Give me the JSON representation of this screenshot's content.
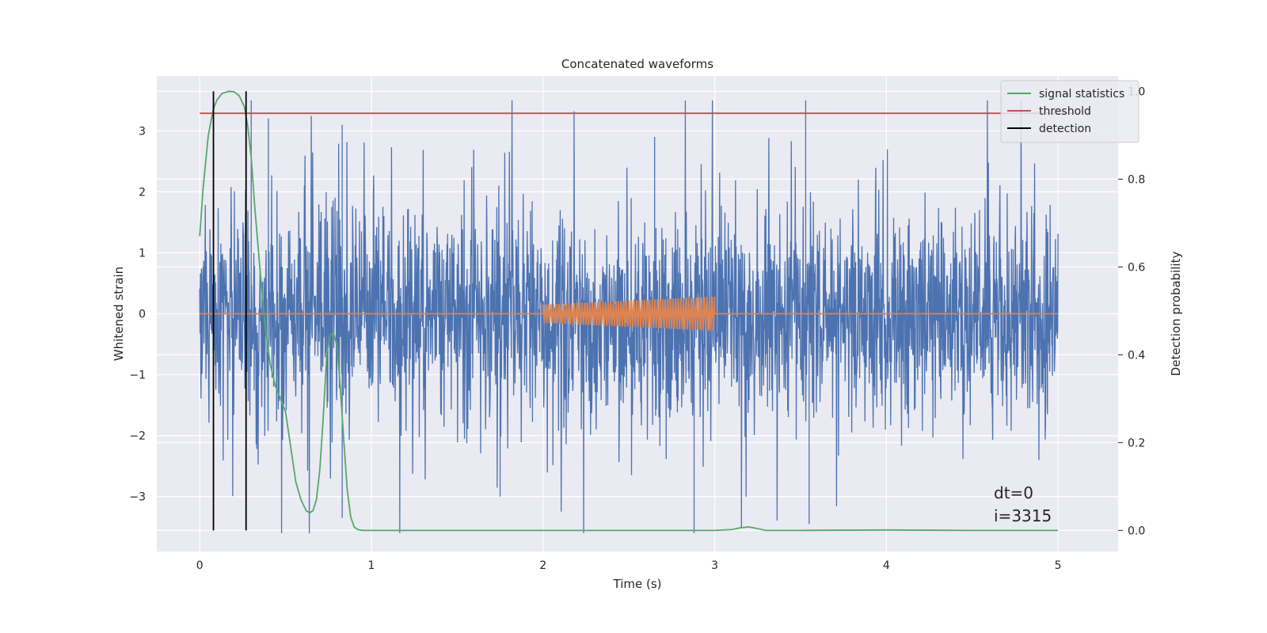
{
  "chart_data": {
    "type": "line",
    "title": "Concatenated waveforms",
    "xlabel": "Time (s)",
    "ylabel": "Whitened strain",
    "y2label": "Detection probability",
    "xlim": [
      -0.25,
      5.35
    ],
    "ylim": [
      -3.9,
      3.9
    ],
    "y2lim": [
      -0.048,
      1.035
    ],
    "xticks": [
      0,
      1,
      2,
      3,
      4,
      5
    ],
    "yticks": [
      -3,
      -2,
      -1,
      0,
      1,
      2,
      3
    ],
    "y2ticks": [
      0.0,
      0.2,
      0.4,
      0.6,
      0.8,
      1.0
    ],
    "xtick_labels": [
      "0",
      "1",
      "2",
      "3",
      "4",
      "5"
    ],
    "ytick_labels": [
      "−3",
      "−2",
      "−1",
      "0",
      "1",
      "2",
      "3"
    ],
    "y2tick_labels": [
      "0.0",
      "0.2",
      "0.4",
      "0.6",
      "0.8",
      "1.0"
    ],
    "grid": true,
    "legend_position": "top-right",
    "series": [
      {
        "color": "#4c72b0",
        "kind": "noise",
        "x_range": [
          0,
          5
        ],
        "amplitude_range": [
          -3.6,
          3.5
        ]
      },
      {
        "color": "#dd8452",
        "kind": "chirp",
        "x_range": [
          0,
          5
        ],
        "chirp_interval": [
          2.0,
          3.0
        ],
        "chirp_amplitude": [
          0.15,
          0.28
        ]
      },
      {
        "name": "signal statistics",
        "color": "#55a868",
        "axis": "right",
        "x": [
          0,
          0.02,
          0.05,
          0.08,
          0.1,
          0.13,
          0.17,
          0.2,
          0.23,
          0.26,
          0.28,
          0.3,
          0.32,
          0.35,
          0.38,
          0.41,
          0.44,
          0.47,
          0.5,
          0.53,
          0.56,
          0.59,
          0.62,
          0.64,
          0.66,
          0.68,
          0.7,
          0.72,
          0.74,
          0.76,
          0.78,
          0.8,
          0.82,
          0.84,
          0.86,
          0.88,
          0.9,
          0.92,
          0.95,
          1.0,
          1.5,
          2.0,
          2.5,
          3.0,
          3.1,
          3.15,
          3.2,
          3.25,
          3.3,
          3.5,
          4.0,
          4.5,
          5.0
        ],
        "y": [
          0.67,
          0.78,
          0.9,
          0.96,
          0.98,
          0.995,
          1.0,
          0.999,
          0.99,
          0.965,
          0.92,
          0.85,
          0.74,
          0.6,
          0.47,
          0.38,
          0.33,
          0.3,
          0.27,
          0.19,
          0.11,
          0.07,
          0.045,
          0.04,
          0.045,
          0.07,
          0.14,
          0.26,
          0.4,
          0.445,
          0.45,
          0.42,
          0.32,
          0.2,
          0.09,
          0.03,
          0.008,
          0.002,
          0.0,
          0.0,
          0.0,
          0.0,
          0.0,
          0.0,
          0.002,
          0.006,
          0.008,
          0.004,
          0.0,
          0.0,
          0.001,
          0.0,
          0.0
        ]
      },
      {
        "name": "threshold",
        "color": "#c44e52",
        "axis": "right",
        "x": [
          0,
          5.1
        ],
        "y": [
          0.95,
          0.95
        ]
      },
      {
        "name": "detection",
        "color": "#000000",
        "axis": "right",
        "kind": "vlines",
        "x": [
          0.08,
          0.27
        ],
        "y_range": [
          0.0,
          1.0
        ]
      }
    ],
    "annotations": [
      "dt=0",
      "i=3315"
    ]
  }
}
